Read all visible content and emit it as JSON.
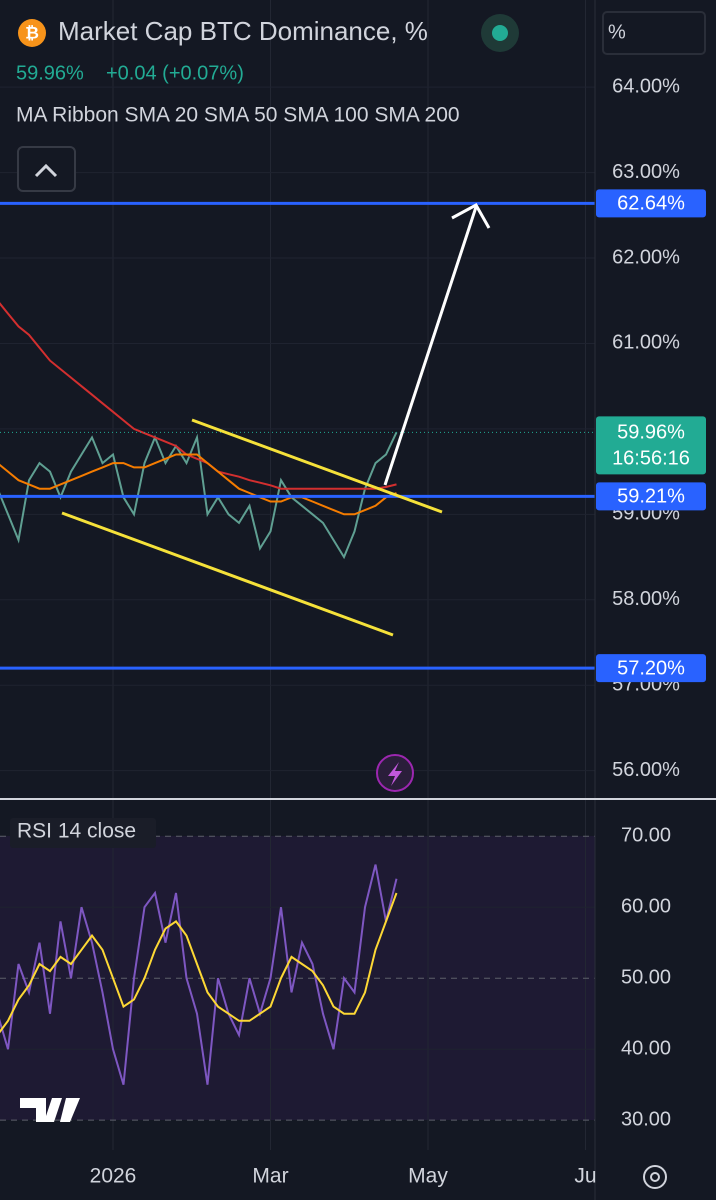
{
  "header": {
    "title": "Market Cap BTC Dominance, %",
    "price": "59.96%",
    "change": "+0.04 (+0.07%)",
    "indicator": "MA Ribbon SMA 20 SMA 50 SMA 100 SMA 200",
    "scale_button": "%"
  },
  "chart_data": [
    {
      "type": "line",
      "categories": [
        null,
        null,
        null,
        null,
        null,
        null,
        null,
        null,
        null,
        null,
        null,
        "2026",
        null,
        null,
        null,
        null,
        null,
        null,
        null,
        null,
        null,
        null,
        null,
        null,
        null,
        null,
        "Mar",
        null,
        null,
        null,
        null,
        null,
        null,
        null,
        null,
        null,
        null,
        null,
        null,
        null,
        null,
        "May",
        null,
        null,
        null,
        null,
        null,
        null,
        null,
        null,
        null,
        null,
        null,
        null,
        null,
        null,
        "Ju"
      ],
      "series": [
        {
          "color": "#5f9f92",
          "values": [
            59.3,
            59.0,
            58.7,
            59.4,
            59.6,
            59.5,
            59.2,
            59.5,
            59.7,
            59.9,
            59.6,
            59.7,
            59.2,
            59.0,
            59.6,
            59.9,
            59.6,
            59.8,
            59.6,
            59.9,
            59.0,
            59.2,
            59.0,
            58.9,
            59.1,
            58.6,
            58.8,
            59.4,
            59.2,
            59.1,
            59.0,
            58.9,
            58.7,
            58.5,
            58.8,
            59.3,
            59.6,
            59.7,
            59.96,
            null,
            null,
            null,
            null,
            null,
            null,
            null,
            null,
            null,
            null,
            null,
            null,
            null,
            null,
            null,
            null,
            null,
            null
          ]
        },
        {
          "color": "#d32f2f",
          "values": [
            61.5,
            61.35,
            61.2,
            61.1,
            60.95,
            60.8,
            60.7,
            60.6,
            60.5,
            60.4,
            60.3,
            60.2,
            60.1,
            60.0,
            59.95,
            59.9,
            59.85,
            59.8,
            59.7,
            59.65,
            59.6,
            59.5,
            59.47,
            59.44,
            59.4,
            59.37,
            59.34,
            59.3,
            59.3,
            59.3,
            59.3,
            59.3,
            59.3,
            59.3,
            59.3,
            59.3,
            59.3,
            59.32,
            59.35,
            null,
            null,
            null,
            null,
            null,
            null,
            null,
            null,
            null,
            null,
            null,
            null,
            null,
            null,
            null,
            null,
            null,
            null
          ]
        },
        {
          "color": "#f57c00",
          "values": [
            59.6,
            59.5,
            59.4,
            59.35,
            59.3,
            59.3,
            59.35,
            59.4,
            59.45,
            59.5,
            59.55,
            59.6,
            59.6,
            59.55,
            59.55,
            59.6,
            59.65,
            59.7,
            59.7,
            59.7,
            59.6,
            59.5,
            59.4,
            59.3,
            59.25,
            59.2,
            59.15,
            59.15,
            59.2,
            59.2,
            59.15,
            59.1,
            59.05,
            59.0,
            59.0,
            59.05,
            59.1,
            59.2,
            59.25,
            null,
            null,
            null,
            null,
            null,
            null,
            null,
            null,
            null,
            null,
            null,
            null,
            null,
            null,
            null,
            null,
            null,
            null
          ]
        }
      ],
      "ylim": [
        55.68,
        65.02
      ],
      "yticks": [
        {
          "value": 64,
          "label": "64.00%"
        },
        {
          "value": 63,
          "label": "63.00%"
        },
        {
          "value": 62,
          "label": "62.00%"
        },
        {
          "value": 61,
          "label": "61.00%"
        },
        {
          "value": 60,
          "label": "60.00%"
        },
        {
          "value": 59,
          "label": "59.00%"
        },
        {
          "value": 58,
          "label": "58.00%"
        },
        {
          "value": 57,
          "label": "57.00%"
        },
        {
          "value": 56,
          "label": "56.00%"
        }
      ],
      "hlines": [
        {
          "value": 62.64,
          "label": "62.64%"
        },
        {
          "value": 59.21,
          "label": "59.21%"
        },
        {
          "value": 57.2,
          "label": "57.20%"
        }
      ],
      "hline_color": "#2962ff",
      "last_price": {
        "value": 59.96,
        "label": "59.96%"
      },
      "countdown": "16:56:16"
    },
    {
      "type": "line",
      "title": "RSI 14 close",
      "series": [
        {
          "color": "#7e57c2",
          "values": [
            45,
            40,
            52,
            48,
            55,
            45,
            58,
            50,
            60,
            55,
            48,
            40,
            35,
            50,
            60,
            62,
            55,
            62,
            50,
            45,
            35,
            50,
            45,
            42,
            50,
            45,
            50,
            60,
            48,
            55,
            52,
            45,
            40,
            50,
            48,
            60,
            66,
            58,
            64,
            null,
            null,
            null,
            null,
            null,
            null,
            null,
            null,
            null,
            null,
            null,
            null,
            null,
            null,
            null,
            null,
            null,
            null
          ]
        },
        {
          "color": "#fdd835",
          "values": [
            42,
            44,
            47,
            49,
            52,
            51,
            53,
            52,
            54,
            56,
            54,
            50,
            46,
            47,
            50,
            54,
            57,
            58,
            56,
            52,
            48,
            46,
            45,
            44,
            44,
            45,
            46,
            50,
            53,
            52,
            51,
            49,
            46,
            45,
            45,
            48,
            54,
            58,
            62,
            null,
            null,
            null,
            null,
            null,
            null,
            null,
            null,
            null,
            null,
            null,
            null,
            null,
            null,
            null,
            null,
            null,
            null
          ]
        }
      ],
      "ylim": [
        25.8,
        75.1
      ],
      "yticks": [
        {
          "value": 70,
          "label": "70.00"
        },
        {
          "value": 60,
          "label": "60.00"
        },
        {
          "value": 50,
          "label": "50.00"
        },
        {
          "value": 40,
          "label": "40.00"
        },
        {
          "value": 30,
          "label": "30.00"
        }
      ]
    }
  ]
}
